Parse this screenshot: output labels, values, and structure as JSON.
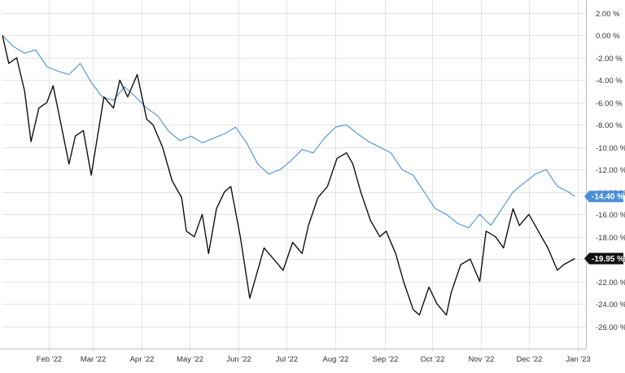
{
  "chart_data": {
    "type": "line",
    "title": "",
    "xlabel": "",
    "ylabel": "",
    "x_ticks": [
      "Feb '22",
      "Mar '22",
      "Apr '22",
      "May '22",
      "Jun '22",
      "Jul '22",
      "Aug '22",
      "Sep '22",
      "Oct '22",
      "Nov '22",
      "Dec '22",
      "Jan '23"
    ],
    "x_tick_dates": [
      "2022-02-01",
      "2022-03-01",
      "2022-04-01",
      "2022-05-01",
      "2022-06-01",
      "2022-07-01",
      "2022-08-01",
      "2022-09-01",
      "2022-10-01",
      "2022-11-01",
      "2022-12-01",
      "2023-01-01"
    ],
    "y_ticks": [
      "2.00 %",
      "0.00 %",
      "-2.00 %",
      "-4.00 %",
      "-6.00 %",
      "-8.00 %",
      "-10.00 %",
      "-12.00 %",
      "-14.00 %",
      "-16.00 %",
      "-18.00 %",
      "-20.00 %",
      "-22.00 %",
      "-24.00 %",
      "-26.00 %"
    ],
    "y_tick_values": [
      2,
      0,
      -2,
      -4,
      -6,
      -8,
      -10,
      -12,
      -14,
      -16,
      -18,
      -20,
      -22,
      -24,
      -26
    ],
    "ylim": [
      -28,
      2.8
    ],
    "xlim": [
      "2022-01-03",
      "2023-01-06"
    ],
    "grid": true,
    "series": [
      {
        "color": "#4a90d9",
        "last_label": "-14.40 %",
        "x": [
          "2022-01-03",
          "2022-01-10",
          "2022-01-17",
          "2022-01-24",
          "2022-01-31",
          "2022-02-07",
          "2022-02-14",
          "2022-02-21",
          "2022-02-28",
          "2022-03-07",
          "2022-03-14",
          "2022-03-21",
          "2022-03-28",
          "2022-04-04",
          "2022-04-11",
          "2022-04-18",
          "2022-04-25",
          "2022-05-02",
          "2022-05-09",
          "2022-05-16",
          "2022-05-23",
          "2022-05-30",
          "2022-06-06",
          "2022-06-13",
          "2022-06-20",
          "2022-06-27",
          "2022-07-04",
          "2022-07-11",
          "2022-07-18",
          "2022-07-25",
          "2022-08-01",
          "2022-08-08",
          "2022-08-15",
          "2022-08-22",
          "2022-08-29",
          "2022-09-05",
          "2022-09-12",
          "2022-09-19",
          "2022-09-26",
          "2022-10-03",
          "2022-10-10",
          "2022-10-17",
          "2022-10-24",
          "2022-10-31",
          "2022-11-07",
          "2022-11-14",
          "2022-11-21",
          "2022-11-28",
          "2022-12-05",
          "2022-12-12",
          "2022-12-19",
          "2022-12-26",
          "2022-12-30"
        ],
        "values": [
          0.0,
          -1.0,
          -1.6,
          -1.3,
          -2.8,
          -3.2,
          -3.5,
          -2.5,
          -4.2,
          -5.5,
          -5.8,
          -4.6,
          -5.5,
          -6.5,
          -7.2,
          -8.6,
          -9.4,
          -9.0,
          -9.6,
          -9.2,
          -8.8,
          -8.2,
          -9.6,
          -11.5,
          -12.4,
          -12.0,
          -11.2,
          -10.2,
          -10.5,
          -9.2,
          -8.2,
          -8.0,
          -8.8,
          -9.5,
          -10.0,
          -10.5,
          -12.0,
          -12.5,
          -14.0,
          -15.5,
          -16.0,
          -16.8,
          -17.2,
          -16.0,
          -17.0,
          -15.5,
          -14.0,
          -13.2,
          -12.4,
          -12.0,
          -13.5,
          -14.0,
          -14.4
        ]
      },
      {
        "color": "#111111",
        "last_label": "-19.95 %",
        "x": [
          "2022-01-03",
          "2022-01-07",
          "2022-01-12",
          "2022-01-17",
          "2022-01-21",
          "2022-01-26",
          "2022-01-31",
          "2022-02-04",
          "2022-02-09",
          "2022-02-14",
          "2022-02-18",
          "2022-02-23",
          "2022-02-28",
          "2022-03-04",
          "2022-03-08",
          "2022-03-14",
          "2022-03-18",
          "2022-03-23",
          "2022-03-29",
          "2022-04-04",
          "2022-04-08",
          "2022-04-14",
          "2022-04-20",
          "2022-04-26",
          "2022-04-29",
          "2022-05-04",
          "2022-05-09",
          "2022-05-13",
          "2022-05-18",
          "2022-05-23",
          "2022-05-27",
          "2022-06-02",
          "2022-06-08",
          "2022-06-13",
          "2022-06-17",
          "2022-06-23",
          "2022-06-29",
          "2022-07-05",
          "2022-07-11",
          "2022-07-15",
          "2022-07-21",
          "2022-07-27",
          "2022-08-02",
          "2022-08-08",
          "2022-08-12",
          "2022-08-17",
          "2022-08-23",
          "2022-08-29",
          "2022-09-02",
          "2022-09-08",
          "2022-09-13",
          "2022-09-19",
          "2022-09-23",
          "2022-09-29",
          "2022-10-04",
          "2022-10-10",
          "2022-10-13",
          "2022-10-19",
          "2022-10-25",
          "2022-10-31",
          "2022-11-04",
          "2022-11-10",
          "2022-11-15",
          "2022-11-21",
          "2022-11-25",
          "2022-12-01",
          "2022-12-07",
          "2022-12-13",
          "2022-12-19",
          "2022-12-23",
          "2022-12-30"
        ],
        "values": [
          0.0,
          -2.5,
          -2.0,
          -5.0,
          -9.5,
          -6.5,
          -6.0,
          -4.5,
          -8.0,
          -11.5,
          -9.0,
          -8.5,
          -12.5,
          -9.0,
          -5.5,
          -6.5,
          -4.0,
          -5.5,
          -3.5,
          -7.5,
          -8.0,
          -10.0,
          -13.0,
          -14.5,
          -17.5,
          -18.0,
          -16.0,
          -19.5,
          -15.5,
          -14.0,
          -13.5,
          -18.0,
          -23.5,
          -21.0,
          -19.0,
          -20.0,
          -21.0,
          -18.5,
          -19.5,
          -17.0,
          -14.5,
          -13.5,
          -11.0,
          -10.5,
          -11.5,
          -14.0,
          -16.5,
          -18.0,
          -17.5,
          -19.5,
          -22.0,
          -24.5,
          -25.0,
          -22.5,
          -24.0,
          -25.0,
          -23.0,
          -20.5,
          -20.0,
          -22.0,
          -17.5,
          -18.0,
          -19.0,
          -15.5,
          -17.0,
          -16.0,
          -17.5,
          -19.0,
          -21.0,
          -20.5,
          -19.95
        ]
      }
    ]
  }
}
